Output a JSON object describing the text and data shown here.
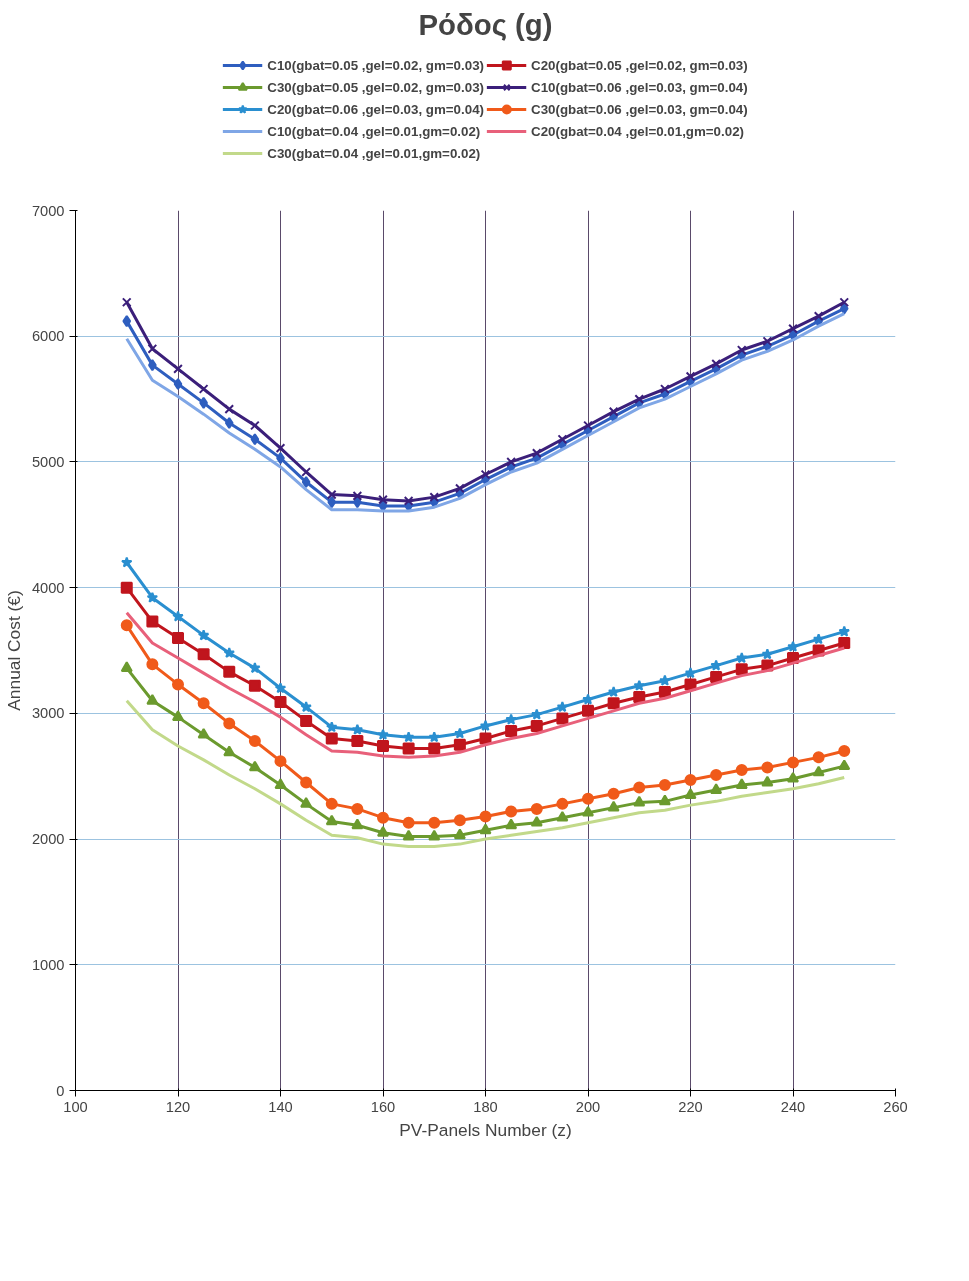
{
  "chart_data": {
    "type": "line",
    "title": "Ρόδος (g)",
    "xlabel": "PV-Panels Number (z)",
    "ylabel": "Annual Cost (€)",
    "x": [
      110,
      115,
      120,
      125,
      130,
      135,
      140,
      145,
      150,
      155,
      160,
      165,
      170,
      175,
      180,
      185,
      190,
      195,
      200,
      205,
      210,
      215,
      220,
      225,
      230,
      235,
      240,
      245,
      250
    ],
    "xlim": [
      100,
      260
    ],
    "xticks": [
      100,
      120,
      140,
      160,
      180,
      200,
      220,
      240,
      260
    ],
    "ylim": [
      0,
      7000
    ],
    "yticks": [
      0,
      1000,
      2000,
      3000,
      4000,
      5000,
      6000,
      7000
    ],
    "grid": true,
    "legend": "top",
    "line_style": "solid",
    "series": [
      {
        "name": "C10(gbat=0.05 ,gel=0.02, gm=0.03)",
        "color": "#2e5ebf",
        "marker": "diamond",
        "values": [
          6120,
          5770,
          5620,
          5470,
          5310,
          5180,
          5030,
          4840,
          4680,
          4680,
          4650,
          4650,
          4680,
          4750,
          4860,
          4960,
          5030,
          5140,
          5250,
          5360,
          5470,
          5540,
          5640,
          5740,
          5850,
          5920,
          6010,
          6120,
          6220
        ]
      },
      {
        "name": "C20(gbat=0.05 ,gel=0.02, gm=0.03)",
        "color": "#c0151d",
        "marker": "square",
        "values": [
          4000,
          3730,
          3600,
          3470,
          3330,
          3220,
          3090,
          2940,
          2800,
          2780,
          2740,
          2720,
          2720,
          2750,
          2800,
          2860,
          2900,
          2960,
          3020,
          3080,
          3130,
          3170,
          3230,
          3290,
          3350,
          3380,
          3440,
          3500,
          3560
        ]
      },
      {
        "name": "C30(gbat=0.05 ,gel=0.02, gm=0.03)",
        "color": "#6b9a2e",
        "marker": "triangle",
        "values": [
          3360,
          3100,
          2970,
          2830,
          2690,
          2570,
          2430,
          2280,
          2140,
          2110,
          2050,
          2020,
          2020,
          2030,
          2070,
          2110,
          2130,
          2170,
          2210,
          2250,
          2290,
          2300,
          2350,
          2390,
          2430,
          2450,
          2480,
          2530,
          2580
        ]
      },
      {
        "name": "C10(gbat=0.06 ,gel=0.03, gm=0.04)",
        "color": "#3b1f7a",
        "marker": "cross",
        "values": [
          6270,
          5900,
          5740,
          5580,
          5420,
          5290,
          5110,
          4920,
          4740,
          4730,
          4700,
          4690,
          4720,
          4790,
          4900,
          5000,
          5070,
          5180,
          5290,
          5400,
          5500,
          5580,
          5680,
          5780,
          5890,
          5960,
          6060,
          6160,
          6270
        ]
      },
      {
        "name": "C20(gbat=0.06 ,gel=0.03, gm=0.04)",
        "color": "#2a8fd0",
        "marker": "star",
        "values": [
          4200,
          3920,
          3770,
          3620,
          3480,
          3360,
          3200,
          3050,
          2890,
          2870,
          2830,
          2810,
          2810,
          2840,
          2900,
          2950,
          2990,
          3050,
          3110,
          3170,
          3220,
          3260,
          3320,
          3380,
          3440,
          3470,
          3530,
          3590,
          3650
        ]
      },
      {
        "name": "C30(gbat=0.06 ,gel=0.03, gm=0.04)",
        "color": "#f05a1a",
        "marker": "circle",
        "values": [
          3700,
          3390,
          3230,
          3080,
          2920,
          2780,
          2620,
          2450,
          2280,
          2240,
          2170,
          2130,
          2130,
          2150,
          2180,
          2220,
          2240,
          2280,
          2320,
          2360,
          2410,
          2430,
          2470,
          2510,
          2550,
          2570,
          2610,
          2650,
          2700
        ]
      },
      {
        "name": "C10(gbat=0.04 ,gel=0.01,gm=0.02)",
        "color": "#7fa6e6",
        "marker": "none",
        "values": [
          5980,
          5650,
          5520,
          5380,
          5230,
          5100,
          4960,
          4780,
          4620,
          4620,
          4610,
          4610,
          4640,
          4710,
          4820,
          4920,
          4990,
          5100,
          5210,
          5320,
          5430,
          5500,
          5600,
          5700,
          5810,
          5880,
          5970,
          6080,
          6180
        ]
      },
      {
        "name": "C20(gbat=0.04 ,gel=0.01,gm=0.02)",
        "color": "#e8607a",
        "marker": "none",
        "values": [
          3800,
          3560,
          3440,
          3320,
          3200,
          3090,
          2970,
          2830,
          2700,
          2690,
          2660,
          2650,
          2660,
          2690,
          2750,
          2800,
          2840,
          2900,
          2960,
          3020,
          3080,
          3120,
          3180,
          3240,
          3300,
          3340,
          3400,
          3460,
          3520
        ]
      },
      {
        "name": "C30(gbat=0.04 ,gel=0.01,gm=0.02)",
        "color": "#c2d98a",
        "marker": "none",
        "values": [
          3100,
          2870,
          2740,
          2630,
          2510,
          2400,
          2280,
          2150,
          2030,
          2010,
          1960,
          1940,
          1940,
          1960,
          2000,
          2030,
          2060,
          2090,
          2130,
          2170,
          2210,
          2230,
          2270,
          2300,
          2340,
          2370,
          2400,
          2440,
          2490
        ]
      }
    ]
  }
}
